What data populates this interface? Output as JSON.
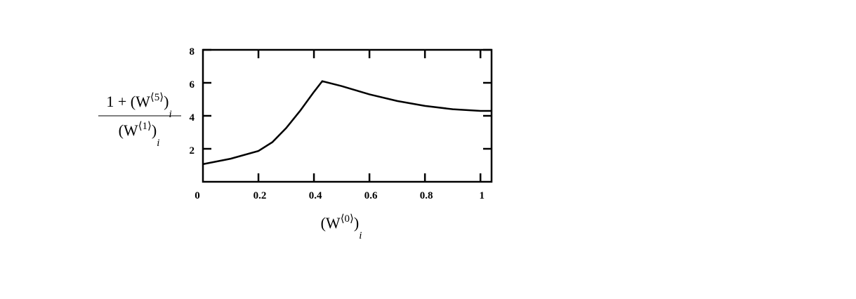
{
  "chart_data": {
    "type": "line",
    "y_label": {
      "numerator": [
        "1 + (W",
        "⟨5⟩",
        ")",
        "i"
      ],
      "denominator": [
        "(W",
        "⟨1⟩",
        ")",
        "i"
      ]
    },
    "x_label": [
      "(W",
      "⟨0⟩",
      ")",
      "i"
    ],
    "x": [
      0,
      0.1,
      0.2,
      0.25,
      0.3,
      0.35,
      0.4,
      0.43,
      0.5,
      0.6,
      0.7,
      0.8,
      0.9,
      1.0,
      1.04
    ],
    "series": [
      {
        "color": "#000000",
        "values": [
          1.07,
          1.4,
          1.87,
          2.4,
          3.26,
          4.3,
          5.45,
          6.1,
          5.8,
          5.3,
          4.9,
          4.6,
          4.4,
          4.3,
          4.3
        ]
      }
    ],
    "xlim": [
      0,
      1.04
    ],
    "ylim": [
      0,
      8
    ],
    "xticks": [
      0,
      0.2,
      0.4,
      0.6,
      0.8,
      1
    ],
    "yticks": [
      2,
      4,
      6,
      8
    ]
  }
}
